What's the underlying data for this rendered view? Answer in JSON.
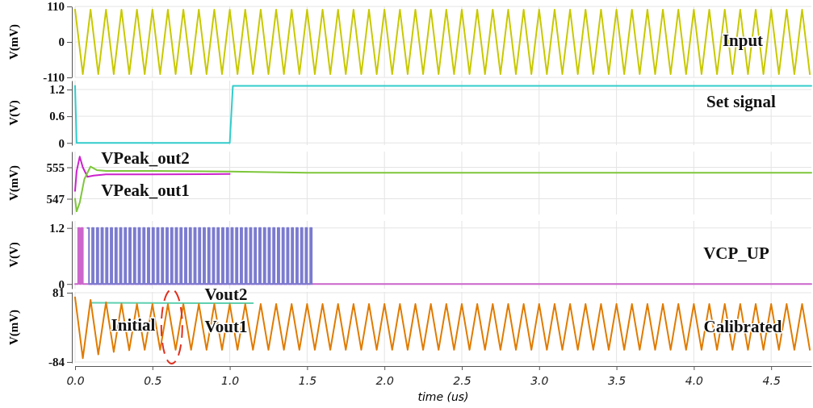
{
  "chart_data": [
    {
      "type": "line",
      "ylabel": "V(mV)",
      "xlim": [
        0,
        4.76
      ],
      "xticks": [
        0,
        0.5,
        1,
        1.5,
        2,
        2.5,
        3,
        3.5,
        4,
        4.5
      ],
      "ylim": [
        -110,
        110
      ],
      "yticks": [
        -110,
        0,
        110
      ],
      "tick_labels": "y",
      "grid": true,
      "series": [
        {
          "color": "#c8c800",
          "x": [
            0,
            0.05,
            0.1,
            0.15,
            0.2,
            0.25,
            0.3,
            0.35,
            0.4,
            0.45,
            0.5,
            0.55,
            0.6,
            0.65,
            0.7,
            0.75,
            0.8,
            0.85,
            0.9,
            0.95,
            1,
            1.05,
            1.1,
            1.15,
            1.2,
            1.25,
            1.3,
            1.35,
            1.4,
            1.45,
            1.5,
            1.55,
            1.6,
            1.65,
            1.7,
            1.75,
            1.8,
            1.85,
            1.9,
            1.95,
            2,
            2.05,
            2.1,
            2.15,
            2.2,
            2.25,
            2.3,
            2.35,
            2.4,
            2.45,
            2.5,
            2.55,
            2.6,
            2.65,
            2.7,
            2.75,
            2.8,
            2.85,
            2.9,
            2.95,
            3,
            3.05,
            3.1,
            3.15,
            3.2,
            3.25,
            3.3,
            3.35,
            3.4,
            3.45,
            3.5,
            3.55,
            3.6,
            3.65,
            3.7,
            3.75,
            3.8,
            3.85,
            3.9,
            3.95,
            4,
            4.05,
            4.1,
            4.15,
            4.2,
            4.25,
            4.3,
            4.35,
            4.4,
            4.45,
            4.5,
            4.55,
            4.6,
            4.65,
            4.7,
            4.75
          ],
          "values": [
            100,
            -100,
            100,
            -100,
            100,
            -100,
            100,
            -100,
            100,
            -100,
            100,
            -100,
            100,
            -100,
            100,
            -100,
            100,
            -100,
            100,
            -100,
            100,
            -100,
            100,
            -100,
            100,
            -100,
            100,
            -100,
            100,
            -100,
            100,
            -100,
            100,
            -100,
            100,
            -100,
            100,
            -100,
            100,
            -100,
            100,
            -100,
            100,
            -100,
            100,
            -100,
            100,
            -100,
            100,
            -100,
            100,
            -100,
            100,
            -100,
            100,
            -100,
            100,
            -100,
            100,
            -100,
            100,
            -100,
            100,
            -100,
            100,
            -100,
            100,
            -100,
            100,
            -100,
            100,
            -100,
            100,
            -100,
            100,
            -100,
            100,
            -100,
            100,
            -100,
            100,
            -100,
            100,
            -100,
            100,
            -100,
            100,
            -100,
            100,
            -100,
            100,
            -100,
            100,
            -100,
            100,
            -100
          ]
        }
      ],
      "annotations": [
        "Input"
      ]
    },
    {
      "type": "line",
      "ylabel": "V(V)",
      "xlim": [
        0,
        4.76
      ],
      "xticks": [
        0,
        0.5,
        1,
        1.5,
        2,
        2.5,
        3,
        3.5,
        4,
        4.5
      ],
      "ylim": [
        -0.05,
        1.4
      ],
      "yticks": [
        0,
        0.6,
        1.2
      ],
      "tick_labels": "y",
      "grid": true,
      "series": [
        {
          "color": "#33cccc",
          "x": [
            0,
            0.01,
            1,
            1.02,
            4.76
          ],
          "values": [
            1.28,
            0,
            0,
            1.28,
            1.28
          ]
        }
      ],
      "annotations": [
        "Set signal"
      ]
    },
    {
      "type": "line",
      "ylabel": "V(mV)",
      "xlim": [
        0,
        4.76
      ],
      "xticks": [
        0,
        0.5,
        1,
        1.5,
        2,
        2.5,
        3,
        3.5,
        4,
        4.5
      ],
      "ylim": [
        543,
        559
      ],
      "yticks": [
        547,
        555
      ],
      "tick_labels": "y",
      "grid": true,
      "series": [
        {
          "color": "#cc22cc",
          "x": [
            0,
            0.01,
            0.03,
            0.05,
            0.08,
            0.12,
            0.2,
            0.5,
            1
          ],
          "values": [
            549,
            554,
            557.7,
            555,
            552.6,
            552.9,
            553.2,
            553.2,
            553.3
          ]
        },
        {
          "color": "#7dc63a",
          "x": [
            0,
            0.01,
            0.03,
            0.06,
            0.1,
            0.14,
            0.2,
            0.5,
            1,
            1.5,
            4.76
          ],
          "values": [
            547,
            543.8,
            546,
            552,
            555.2,
            554.3,
            554.1,
            554.1,
            553.9,
            553.6,
            553.6
          ]
        }
      ],
      "annotations": [
        "VPeak_out2",
        "VPeak_out1"
      ]
    },
    {
      "type": "step",
      "ylabel": "V(V)",
      "xlim": [
        0,
        4.76
      ],
      "xticks": [
        0,
        0.5,
        1,
        1.5,
        2,
        2.5,
        3,
        3.5,
        4,
        4.5
      ],
      "ylim": [
        -0.1,
        1.35
      ],
      "yticks": [
        0,
        1.2
      ],
      "tick_labels": "y",
      "grid": true,
      "series": [
        {
          "color": "#cc66cc",
          "x": [
            0,
            0.02,
            0.03,
            0.04,
            0.05,
            4.76
          ],
          "values": [
            0,
            1.2,
            0,
            1.2,
            0,
            0
          ]
        },
        {
          "color": "#7b7bd0",
          "x": [
            0.08,
            0.09,
            0.11,
            0.12,
            0.14,
            0.15,
            0.17,
            0.18,
            0.2,
            0.21,
            0.23,
            0.24,
            0.26,
            0.27,
            0.29,
            0.3,
            0.32,
            0.33,
            0.35,
            0.36,
            0.38,
            0.39,
            0.41,
            0.42,
            0.44,
            0.45,
            0.47,
            0.48,
            0.5,
            0.51,
            0.53,
            0.54,
            0.56,
            0.57,
            0.59,
            0.6,
            0.62,
            0.63,
            0.65,
            0.66,
            0.68,
            0.69,
            0.71,
            0.72,
            0.74,
            0.75,
            0.77,
            0.78,
            0.8,
            0.81,
            0.83,
            0.84,
            0.86,
            0.87,
            0.89,
            0.9,
            0.92,
            0.93,
            0.95,
            0.96,
            0.98,
            0.99,
            1.01,
            1.02,
            1.04,
            1.05,
            1.07,
            1.08,
            1.1,
            1.11,
            1.13,
            1.14,
            1.16,
            1.17,
            1.19,
            1.2,
            1.22,
            1.23,
            1.25,
            1.26,
            1.28,
            1.29,
            1.31,
            1.32,
            1.34,
            1.35,
            1.37,
            1.38,
            1.4,
            1.41,
            1.43,
            1.44,
            1.46,
            1.47,
            1.49,
            1.5,
            1.52,
            1.53
          ],
          "values": [
            1.2,
            0,
            1.2,
            0,
            1.2,
            0,
            1.2,
            0,
            1.2,
            0,
            1.2,
            0,
            1.2,
            0,
            1.2,
            0,
            1.2,
            0,
            1.2,
            0,
            1.2,
            0,
            1.2,
            0,
            1.2,
            0,
            1.2,
            0,
            1.2,
            0,
            1.2,
            0,
            1.2,
            0,
            1.2,
            0,
            1.2,
            0,
            1.2,
            0,
            1.2,
            0,
            1.2,
            0,
            1.2,
            0,
            1.2,
            0,
            1.2,
            0,
            1.2,
            0,
            1.2,
            0,
            1.2,
            0,
            1.2,
            0,
            1.2,
            0,
            1.2,
            0,
            1.2,
            0,
            1.2,
            0,
            1.2,
            0,
            1.2,
            0,
            1.2,
            0,
            1.2,
            0,
            1.2,
            0,
            1.2,
            0,
            1.2,
            0,
            1.2,
            0,
            1.2,
            0,
            1.2,
            0,
            1.2,
            0,
            1.2,
            0,
            1.2,
            0,
            1.2,
            0,
            1.2,
            0,
            1.2,
            0
          ]
        }
      ],
      "annotations": [
        "VCP_UP"
      ]
    },
    {
      "type": "line",
      "xlabel": "time (us)",
      "ylabel": "V(mV)",
      "xlim": [
        0,
        4.76
      ],
      "xticks": [
        {
          "value": 0,
          "label": "0.0"
        },
        {
          "value": 0.5,
          "label": "0.5"
        },
        {
          "value": 1,
          "label": "1.0"
        },
        {
          "value": 1.5,
          "label": "1.5"
        },
        {
          "value": 2,
          "label": "2.0"
        },
        {
          "value": 2.5,
          "label": "2.5"
        },
        {
          "value": 3,
          "label": "3.0"
        },
        {
          "value": 3.5,
          "label": "3.5"
        },
        {
          "value": 4,
          "label": "4.0"
        },
        {
          "value": 4.5,
          "label": "4.5"
        }
      ],
      "ylim": [
        -86,
        83
      ],
      "yticks": [
        -84,
        81
      ],
      "grid": true,
      "series": [
        {
          "color": "#5fd0b0",
          "x": [
            0.1,
            1.15
          ],
          "values": [
            57,
            56
          ]
        },
        {
          "color": "#e07b00",
          "x": [
            0,
            0.05,
            0.1,
            0.15,
            0.2,
            0.25,
            0.3,
            0.35,
            0.4,
            0.45,
            0.5,
            0.55,
            0.6,
            0.65,
            0.7,
            0.75,
            0.8,
            0.85,
            0.9,
            0.95,
            1,
            1.05,
            1.1,
            1.15,
            1.2,
            1.25,
            1.3,
            1.35,
            1.4,
            1.45,
            1.5,
            1.55,
            1.6,
            1.65,
            1.7,
            1.75,
            1.8,
            1.85,
            1.9,
            1.95,
            2,
            2.05,
            2.1,
            2.15,
            2.2,
            2.25,
            2.3,
            2.35,
            2.4,
            2.45,
            2.5,
            2.55,
            2.6,
            2.65,
            2.7,
            2.75,
            2.8,
            2.85,
            2.9,
            2.95,
            3,
            3.05,
            3.1,
            3.15,
            3.2,
            3.25,
            3.3,
            3.35,
            3.4,
            3.45,
            3.5,
            3.55,
            3.6,
            3.65,
            3.7,
            3.75,
            3.8,
            3.85,
            3.9,
            3.95,
            4,
            4.05,
            4.1,
            4.15,
            4.2,
            4.25,
            4.3,
            4.35,
            4.4,
            4.45,
            4.5,
            4.55,
            4.6,
            4.65,
            4.7,
            4.75
          ],
          "values": [
            70,
            -75,
            64,
            -66,
            58,
            -60,
            55,
            -56,
            54,
            -55,
            54,
            -55,
            54,
            -55,
            54,
            -55,
            54,
            -55,
            54,
            -55,
            54,
            -55,
            54,
            -55,
            54,
            -55,
            54,
            -55,
            54,
            -55,
            54,
            -55,
            54,
            -55,
            54,
            -55,
            54,
            -55,
            54,
            -55,
            54,
            -55,
            54,
            -55,
            54,
            -55,
            54,
            -55,
            54,
            -55,
            54,
            -55,
            54,
            -55,
            54,
            -55,
            54,
            -55,
            54,
            -55,
            54,
            -55,
            54,
            -55,
            54,
            -55,
            54,
            -55,
            54,
            -55,
            54,
            -55,
            54,
            -55,
            54,
            -55,
            54,
            -55,
            54,
            -55,
            54,
            -55,
            54,
            -55,
            54,
            -55,
            54,
            -55,
            54,
            -55,
            54,
            -55,
            54,
            -55,
            54,
            -55
          ]
        }
      ],
      "annotations": [
        "Vout2",
        "Vout1",
        "Initial",
        "Calibrated"
      ]
    }
  ]
}
